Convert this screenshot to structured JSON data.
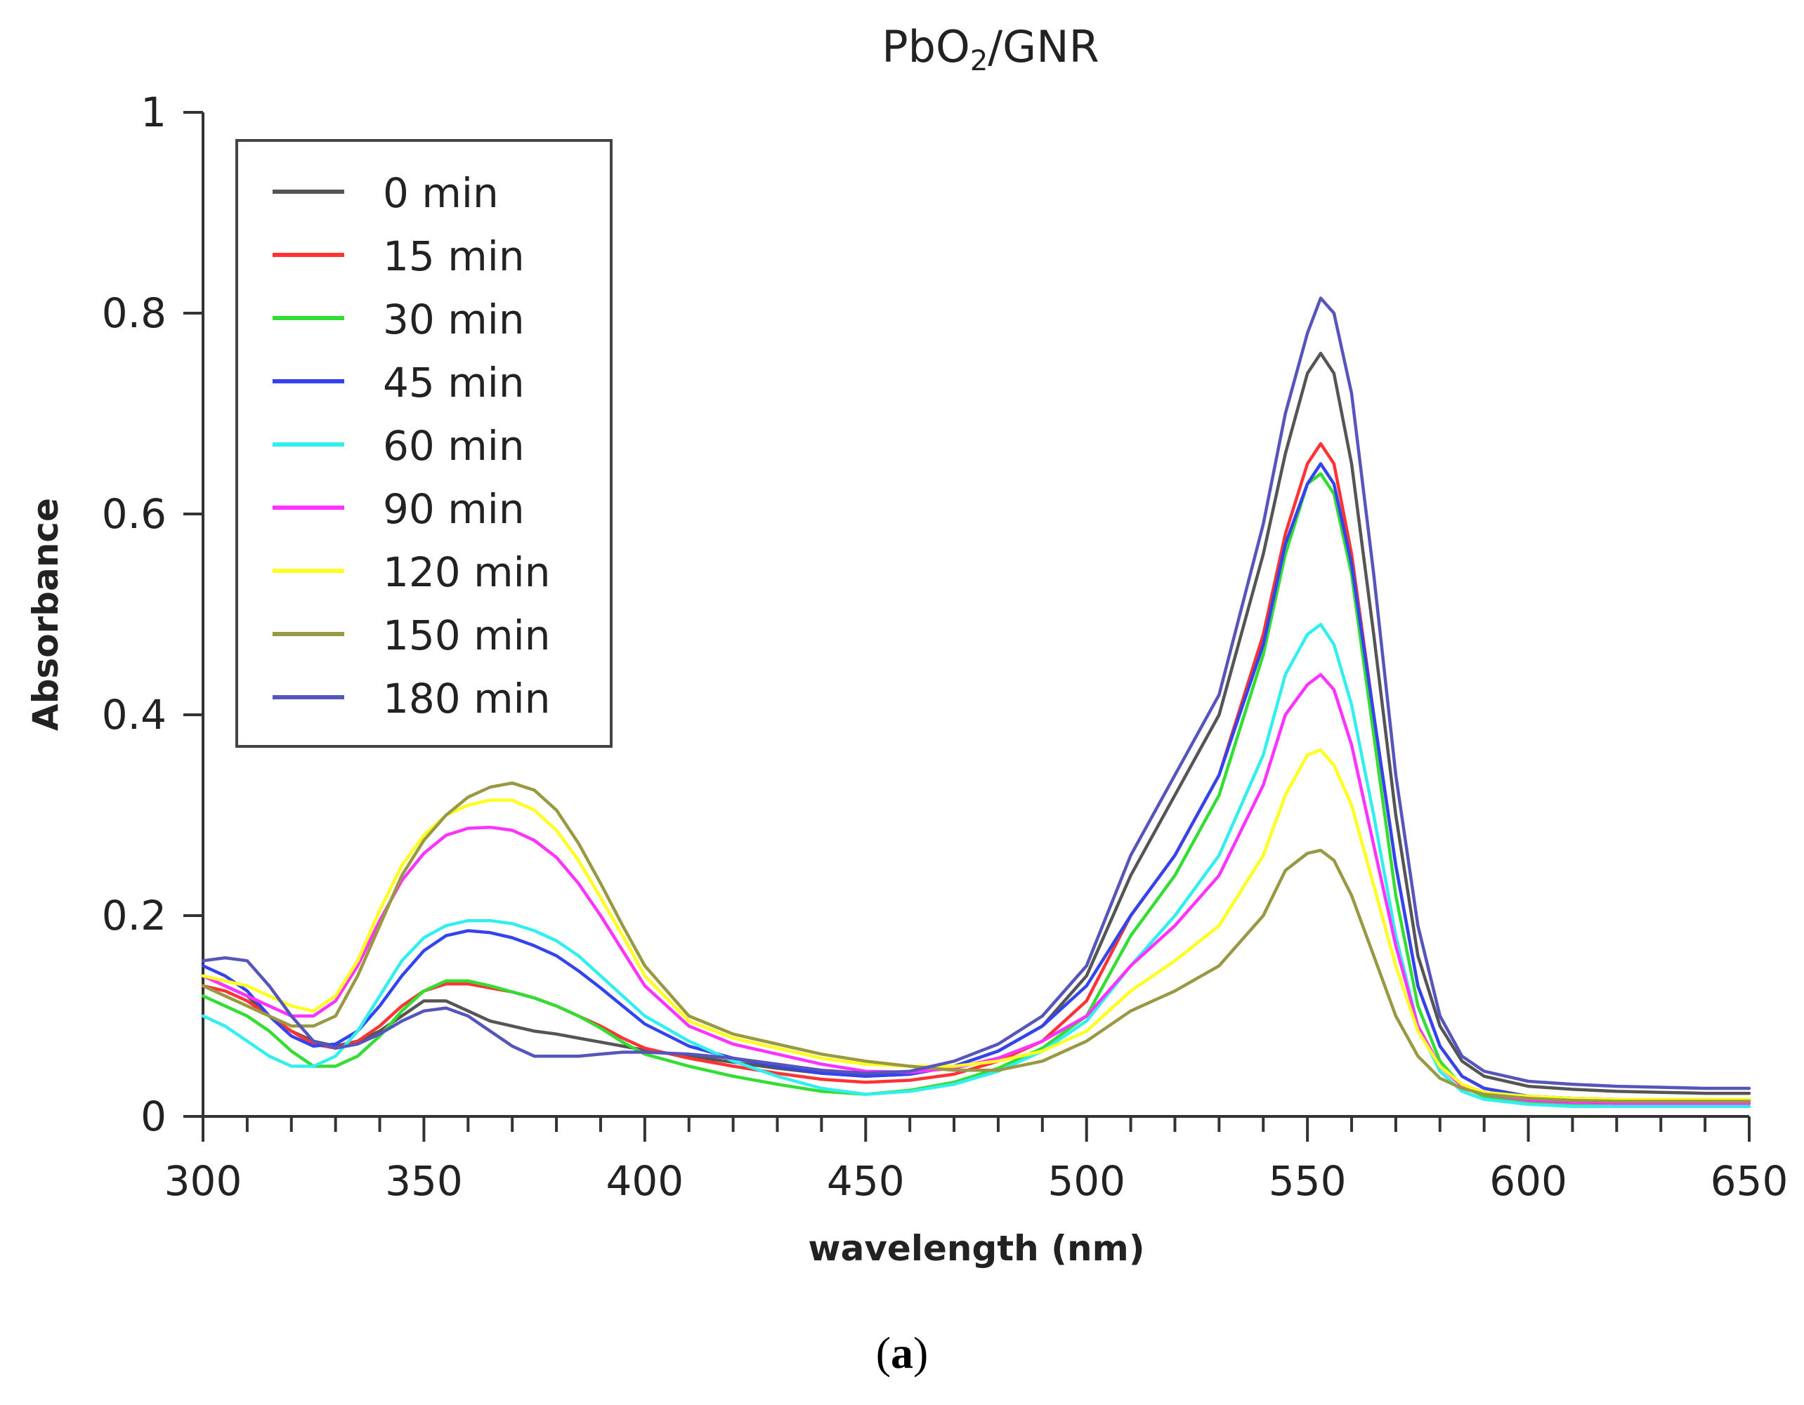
{
  "chart_data": {
    "type": "line",
    "title_main": "PbO",
    "title_sub": "2",
    "title_rest": "/GNR",
    "xlabel": "wavelength (nm)",
    "ylabel": "Absorbance",
    "xlim": [
      300,
      650
    ],
    "ylim": [
      0,
      1
    ],
    "xticks": [
      300,
      350,
      400,
      450,
      500,
      550,
      600,
      650
    ],
    "yticks": [
      0,
      0.2,
      0.4,
      0.6,
      0.8,
      1
    ],
    "ytick_labels": [
      "0",
      "0.2",
      "0.4",
      "0.6",
      "0.8",
      "1"
    ],
    "x_minor_step": 10,
    "legend_position": "top-left",
    "panel_label_open": "(",
    "panel_label_letter": "a",
    "panel_label_close": ")",
    "x": [
      300,
      305,
      310,
      315,
      320,
      325,
      330,
      335,
      340,
      345,
      350,
      355,
      360,
      365,
      370,
      375,
      380,
      385,
      390,
      395,
      400,
      410,
      420,
      430,
      440,
      450,
      460,
      470,
      480,
      490,
      500,
      510,
      520,
      530,
      540,
      545,
      550,
      553,
      556,
      560,
      565,
      570,
      575,
      580,
      585,
      590,
      600,
      610,
      620,
      630,
      640,
      650
    ],
    "series": [
      {
        "name": "0 min",
        "color": "#555555",
        "values": [
          0.14,
          0.13,
          0.12,
          0.1,
          0.085,
          0.075,
          0.07,
          0.075,
          0.085,
          0.1,
          0.115,
          0.115,
          0.105,
          0.095,
          0.09,
          0.085,
          0.082,
          0.078,
          0.074,
          0.07,
          0.066,
          0.06,
          0.054,
          0.048,
          0.043,
          0.04,
          0.042,
          0.05,
          0.065,
          0.09,
          0.14,
          0.24,
          0.32,
          0.4,
          0.56,
          0.66,
          0.74,
          0.76,
          0.74,
          0.65,
          0.48,
          0.3,
          0.16,
          0.09,
          0.055,
          0.04,
          0.03,
          0.027,
          0.025,
          0.024,
          0.023,
          0.023
        ]
      },
      {
        "name": "15 min",
        "color": "#ff3333",
        "values": [
          0.13,
          0.125,
          0.115,
          0.1,
          0.085,
          0.072,
          0.068,
          0.075,
          0.09,
          0.11,
          0.125,
          0.132,
          0.132,
          0.128,
          0.124,
          0.118,
          0.11,
          0.1,
          0.09,
          0.078,
          0.068,
          0.058,
          0.05,
          0.043,
          0.037,
          0.034,
          0.036,
          0.042,
          0.055,
          0.075,
          0.115,
          0.2,
          0.26,
          0.34,
          0.48,
          0.58,
          0.65,
          0.67,
          0.65,
          0.56,
          0.4,
          0.25,
          0.13,
          0.07,
          0.04,
          0.028,
          0.02,
          0.018,
          0.017,
          0.016,
          0.016,
          0.016
        ]
      },
      {
        "name": "30 min",
        "color": "#33dd33",
        "values": [
          0.12,
          0.11,
          0.1,
          0.085,
          0.065,
          0.05,
          0.05,
          0.06,
          0.08,
          0.105,
          0.125,
          0.135,
          0.135,
          0.13,
          0.124,
          0.118,
          0.11,
          0.1,
          0.088,
          0.074,
          0.062,
          0.05,
          0.04,
          0.032,
          0.025,
          0.022,
          0.026,
          0.034,
          0.048,
          0.068,
          0.1,
          0.18,
          0.24,
          0.32,
          0.46,
          0.56,
          0.63,
          0.64,
          0.62,
          0.54,
          0.38,
          0.22,
          0.11,
          0.055,
          0.03,
          0.02,
          0.013,
          0.011,
          0.01,
          0.01,
          0.01,
          0.01
        ]
      },
      {
        "name": "45 min",
        "color": "#3344ee",
        "values": [
          0.15,
          0.14,
          0.125,
          0.1,
          0.08,
          0.07,
          0.072,
          0.085,
          0.11,
          0.14,
          0.165,
          0.18,
          0.185,
          0.183,
          0.178,
          0.17,
          0.16,
          0.145,
          0.128,
          0.11,
          0.092,
          0.07,
          0.058,
          0.05,
          0.043,
          0.04,
          0.042,
          0.05,
          0.065,
          0.09,
          0.13,
          0.2,
          0.26,
          0.34,
          0.47,
          0.57,
          0.63,
          0.65,
          0.63,
          0.55,
          0.4,
          0.25,
          0.13,
          0.07,
          0.04,
          0.028,
          0.02,
          0.018,
          0.017,
          0.017,
          0.017,
          0.017
        ]
      },
      {
        "name": "60 min",
        "color": "#33eeee",
        "values": [
          0.1,
          0.09,
          0.075,
          0.06,
          0.05,
          0.05,
          0.06,
          0.085,
          0.12,
          0.155,
          0.178,
          0.19,
          0.195,
          0.195,
          0.192,
          0.185,
          0.175,
          0.16,
          0.14,
          0.12,
          0.1,
          0.075,
          0.055,
          0.04,
          0.028,
          0.022,
          0.025,
          0.032,
          0.045,
          0.065,
          0.095,
          0.15,
          0.2,
          0.26,
          0.36,
          0.44,
          0.48,
          0.49,
          0.47,
          0.41,
          0.3,
          0.18,
          0.09,
          0.045,
          0.025,
          0.017,
          0.012,
          0.01,
          0.01,
          0.01,
          0.01,
          0.01
        ]
      },
      {
        "name": "90 min",
        "color": "#ff33ff",
        "values": [
          0.14,
          0.13,
          0.12,
          0.11,
          0.1,
          0.1,
          0.115,
          0.15,
          0.195,
          0.235,
          0.262,
          0.28,
          0.287,
          0.288,
          0.285,
          0.275,
          0.258,
          0.232,
          0.2,
          0.165,
          0.13,
          0.09,
          0.072,
          0.062,
          0.052,
          0.045,
          0.044,
          0.048,
          0.058,
          0.075,
          0.1,
          0.15,
          0.19,
          0.24,
          0.33,
          0.4,
          0.43,
          0.44,
          0.425,
          0.37,
          0.27,
          0.17,
          0.09,
          0.05,
          0.03,
          0.022,
          0.016,
          0.014,
          0.013,
          0.013,
          0.013,
          0.013
        ]
      },
      {
        "name": "120 min",
        "color": "#ffff22",
        "values": [
          0.14,
          0.135,
          0.13,
          0.12,
          0.11,
          0.105,
          0.12,
          0.155,
          0.205,
          0.25,
          0.28,
          0.3,
          0.31,
          0.315,
          0.315,
          0.305,
          0.285,
          0.255,
          0.218,
          0.18,
          0.14,
          0.095,
          0.078,
          0.068,
          0.058,
          0.052,
          0.05,
          0.05,
          0.055,
          0.065,
          0.085,
          0.125,
          0.155,
          0.19,
          0.26,
          0.32,
          0.36,
          0.365,
          0.35,
          0.31,
          0.23,
          0.15,
          0.085,
          0.05,
          0.032,
          0.024,
          0.02,
          0.018,
          0.017,
          0.017,
          0.017,
          0.017
        ]
      },
      {
        "name": "150 min",
        "color": "#999944",
        "values": [
          0.13,
          0.12,
          0.11,
          0.1,
          0.09,
          0.09,
          0.1,
          0.14,
          0.19,
          0.24,
          0.275,
          0.3,
          0.318,
          0.328,
          0.332,
          0.325,
          0.305,
          0.272,
          0.232,
          0.19,
          0.15,
          0.1,
          0.082,
          0.072,
          0.062,
          0.055,
          0.05,
          0.046,
          0.046,
          0.055,
          0.075,
          0.105,
          0.125,
          0.15,
          0.2,
          0.245,
          0.262,
          0.265,
          0.255,
          0.22,
          0.16,
          0.1,
          0.06,
          0.038,
          0.028,
          0.022,
          0.018,
          0.016,
          0.015,
          0.015,
          0.015,
          0.015
        ]
      },
      {
        "name": "180 min",
        "color": "#5555bb",
        "values": [
          0.155,
          0.158,
          0.155,
          0.13,
          0.1,
          0.075,
          0.068,
          0.072,
          0.082,
          0.095,
          0.105,
          0.108,
          0.1,
          0.085,
          0.07,
          0.06,
          0.06,
          0.06,
          0.062,
          0.064,
          0.064,
          0.062,
          0.058,
          0.052,
          0.046,
          0.043,
          0.045,
          0.055,
          0.072,
          0.1,
          0.15,
          0.26,
          0.34,
          0.42,
          0.59,
          0.7,
          0.78,
          0.815,
          0.8,
          0.72,
          0.54,
          0.34,
          0.19,
          0.1,
          0.06,
          0.045,
          0.035,
          0.032,
          0.03,
          0.029,
          0.028,
          0.028
        ]
      }
    ]
  }
}
